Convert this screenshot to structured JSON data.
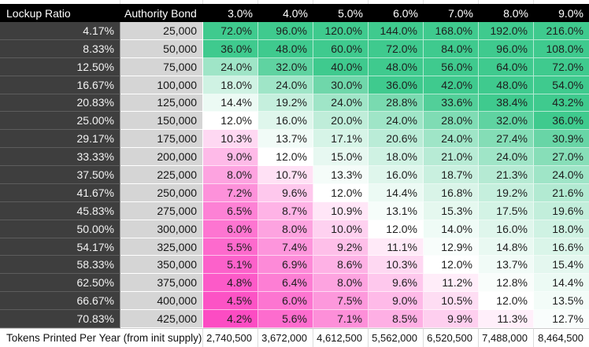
{
  "colors": {
    "header_bg": "#000000",
    "header_text": "#ffffff",
    "lockup_col_bg": "#3e3e3e",
    "lockup_col_text": "#f2f2f2",
    "bond_col_bg": "#d5d5d5",
    "cell_text": "#1e1e1e",
    "footer_bg": "#ffffff",
    "scale_green": "#3fca8e",
    "scale_mid": "#ffffff",
    "scale_pink": "#fc4cc3"
  },
  "color_scale": {
    "pink_min_value": 4.2,
    "white_mid_value": 12.0,
    "green_max_value": 36.0
  },
  "chart_data": {
    "type": "heatmap",
    "headers": {
      "lockup": "Lockup Ratio",
      "bond": "Authority Bond",
      "rates": [
        "3.0%",
        "4.0%",
        "5.0%",
        "6.0%",
        "7.0%",
        "8.0%",
        "9.0%"
      ]
    },
    "value_format": "percent_one_decimal",
    "rows": [
      {
        "lockup": "4.17%",
        "bond": "25,000",
        "values": [
          72.0,
          96.0,
          120.0,
          144.0,
          168.0,
          192.0,
          216.0
        ]
      },
      {
        "lockup": "8.33%",
        "bond": "50,000",
        "values": [
          36.0,
          48.0,
          60.0,
          72.0,
          84.0,
          96.0,
          108.0
        ]
      },
      {
        "lockup": "12.50%",
        "bond": "75,000",
        "values": [
          24.0,
          32.0,
          40.0,
          48.0,
          56.0,
          64.0,
          72.0
        ]
      },
      {
        "lockup": "16.67%",
        "bond": "100,000",
        "values": [
          18.0,
          24.0,
          30.0,
          36.0,
          42.0,
          48.0,
          54.0
        ]
      },
      {
        "lockup": "20.83%",
        "bond": "125,000",
        "values": [
          14.4,
          19.2,
          24.0,
          28.8,
          33.6,
          38.4,
          43.2
        ]
      },
      {
        "lockup": "25.00%",
        "bond": "150,000",
        "values": [
          12.0,
          16.0,
          20.0,
          24.0,
          28.0,
          32.0,
          36.0
        ]
      },
      {
        "lockup": "29.17%",
        "bond": "175,000",
        "values": [
          10.3,
          13.7,
          17.1,
          20.6,
          24.0,
          27.4,
          30.9
        ]
      },
      {
        "lockup": "33.33%",
        "bond": "200,000",
        "values": [
          9.0,
          12.0,
          15.0,
          18.0,
          21.0,
          24.0,
          27.0
        ]
      },
      {
        "lockup": "37.50%",
        "bond": "225,000",
        "values": [
          8.0,
          10.7,
          13.3,
          16.0,
          18.7,
          21.3,
          24.0
        ]
      },
      {
        "lockup": "41.67%",
        "bond": "250,000",
        "values": [
          7.2,
          9.6,
          12.0,
          14.4,
          16.8,
          19.2,
          21.6
        ]
      },
      {
        "lockup": "45.83%",
        "bond": "275,000",
        "values": [
          6.5,
          8.7,
          10.9,
          13.1,
          15.3,
          17.5,
          19.6
        ]
      },
      {
        "lockup": "50.00%",
        "bond": "300,000",
        "values": [
          6.0,
          8.0,
          10.0,
          12.0,
          14.0,
          16.0,
          18.0
        ]
      },
      {
        "lockup": "54.17%",
        "bond": "325,000",
        "values": [
          5.5,
          7.4,
          9.2,
          11.1,
          12.9,
          14.8,
          16.6
        ]
      },
      {
        "lockup": "58.33%",
        "bond": "350,000",
        "values": [
          5.1,
          6.9,
          8.6,
          10.3,
          12.0,
          13.7,
          15.4
        ]
      },
      {
        "lockup": "62.50%",
        "bond": "375,000",
        "values": [
          4.8,
          6.4,
          8.0,
          9.6,
          11.2,
          12.8,
          14.4
        ]
      },
      {
        "lockup": "66.67%",
        "bond": "400,000",
        "values": [
          4.5,
          6.0,
          7.5,
          9.0,
          10.5,
          12.0,
          13.5
        ]
      },
      {
        "lockup": "70.83%",
        "bond": "425,000",
        "values": [
          4.2,
          5.6,
          7.1,
          8.5,
          9.9,
          11.3,
          12.7
        ]
      }
    ],
    "footer": {
      "label": "Tokens Printed Per Year (from init supply)",
      "values": [
        "2,740,500",
        "3,672,000",
        "4,612,500",
        "5,562,000",
        "6,520,500",
        "7,488,000",
        "8,464,500"
      ]
    }
  }
}
